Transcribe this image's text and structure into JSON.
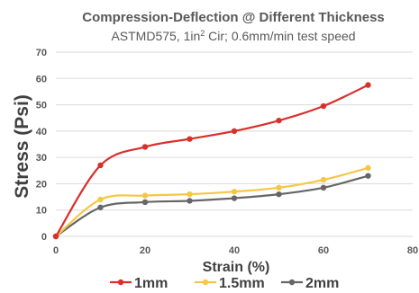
{
  "chart_data": {
    "type": "line",
    "title": "Compression-Deflection @ Different Thickness",
    "subtitle": {
      "prefix": "ASTMD575, 1in",
      "superscript": "2",
      "suffix": " Cir; 0.6mm/min test speed"
    },
    "xlabel": "Strain (%)",
    "ylabel": "Stress (Psi)",
    "xlim": [
      0,
      80
    ],
    "ylim": [
      0,
      70
    ],
    "xticks": [
      0,
      20,
      40,
      60,
      80
    ],
    "yticks": [
      0,
      10,
      20,
      30,
      40,
      50,
      60,
      70
    ],
    "grid": "horizontal",
    "legend_position": "bottom",
    "series": [
      {
        "name": "1mm",
        "color": "#d9302c",
        "x": [
          0,
          10,
          20,
          30,
          40,
          50,
          60,
          70
        ],
        "y": [
          0,
          27,
          34,
          37,
          40,
          44,
          49.5,
          57.5
        ]
      },
      {
        "name": "1.5mm",
        "color": "#f6c744",
        "x": [
          0,
          10,
          20,
          30,
          40,
          50,
          60,
          70
        ],
        "y": [
          0,
          14,
          15.5,
          16,
          17,
          18.5,
          21.5,
          26
        ]
      },
      {
        "name": "2mm",
        "color": "#666666",
        "x": [
          0,
          10,
          20,
          30,
          40,
          50,
          60,
          70
        ],
        "y": [
          0,
          11,
          13,
          13.5,
          14.5,
          16,
          18.5,
          23
        ]
      }
    ]
  }
}
